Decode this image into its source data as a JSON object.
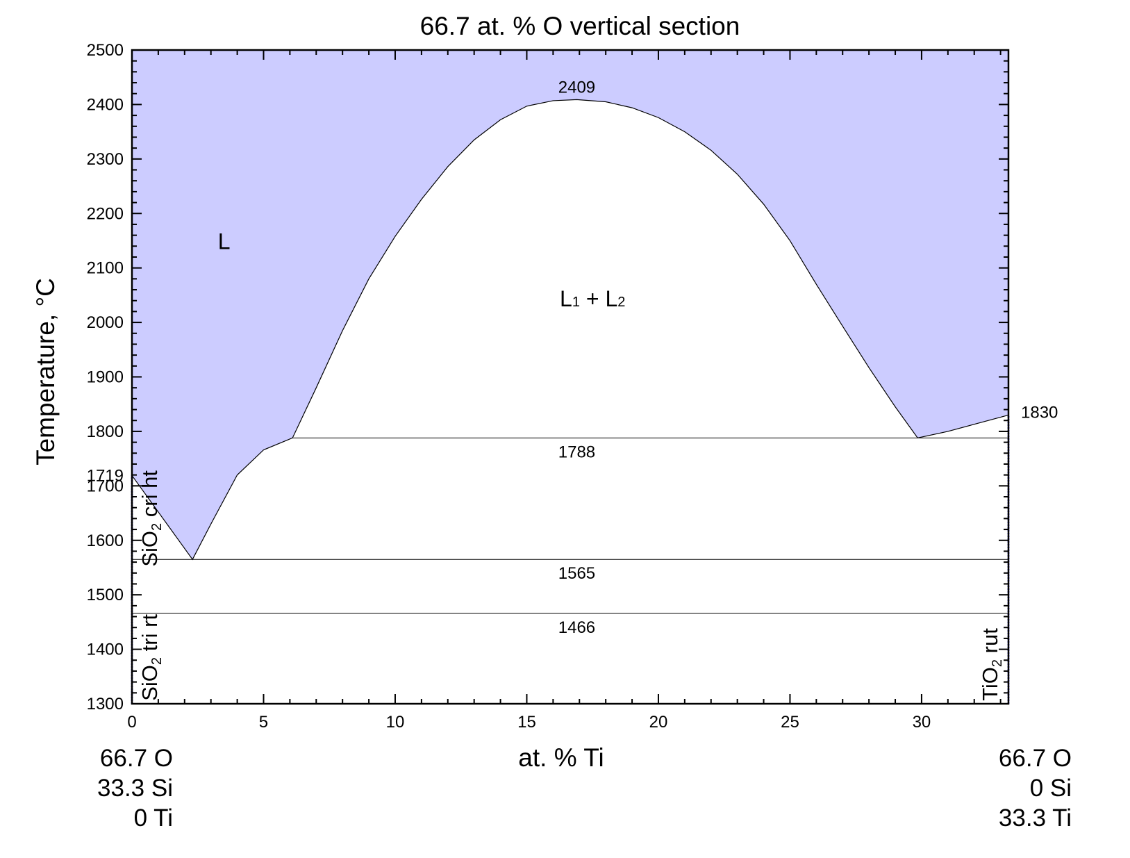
{
  "chart_data": {
    "type": "phase-diagram",
    "title": "66.7 at. % O vertical section",
    "xlabel": "at. % Ti",
    "ylabel": "Temperature, °C",
    "xlim": [
      0,
      33.3
    ],
    "ylim": [
      1300,
      2500
    ],
    "x_ticks": [
      0,
      5,
      10,
      15,
      20,
      25,
      30
    ],
    "y_ticks": [
      1300,
      1400,
      1500,
      1600,
      1700,
      1800,
      1900,
      2000,
      2100,
      2200,
      2300,
      2400,
      2500
    ],
    "y_tick_extra": [
      1719
    ],
    "grid": false,
    "fill_color": "#ccccff",
    "liquid_region": {
      "label": "L",
      "label_pos": [
        3.5,
        2150
      ],
      "boundary": [
        [
          0,
          1719
        ],
        [
          2.3,
          1565
        ],
        [
          3.0,
          1630
        ],
        [
          4.0,
          1720
        ],
        [
          5.0,
          1766
        ],
        [
          6.1,
          1788
        ],
        [
          7.0,
          1880
        ],
        [
          8.0,
          1985
        ],
        [
          9.0,
          2080
        ],
        [
          10.0,
          2158
        ],
        [
          11.0,
          2226
        ],
        [
          12.0,
          2286
        ],
        [
          13.0,
          2335
        ],
        [
          14.0,
          2372
        ],
        [
          15.0,
          2397
        ],
        [
          16.0,
          2407
        ],
        [
          16.9,
          2409
        ],
        [
          18.0,
          2405
        ],
        [
          19.0,
          2394
        ],
        [
          20.0,
          2376
        ],
        [
          21.0,
          2350
        ],
        [
          22.0,
          2316
        ],
        [
          23.0,
          2272
        ],
        [
          24.0,
          2217
        ],
        [
          25.0,
          2150
        ],
        [
          26.0,
          2070
        ],
        [
          27.0,
          1993
        ],
        [
          28.0,
          1917
        ],
        [
          29.0,
          1845
        ],
        [
          29.85,
          1788
        ],
        [
          31.0,
          1800
        ],
        [
          32.0,
          1813
        ],
        [
          33.3,
          1830
        ]
      ]
    },
    "miscibility_region": {
      "label": "L",
      "label_sub": "1",
      "label_join": " + ",
      "label2": "L",
      "label2_sub": "2",
      "label_pos": [
        17.5,
        2045
      ]
    },
    "invariant_lines": [
      {
        "T": 1788,
        "x_range": [
          6.1,
          33.3
        ],
        "label": "1788"
      },
      {
        "T": 1565,
        "x_range": [
          0,
          33.3
        ],
        "label": "1565"
      },
      {
        "T": 1466,
        "x_range": [
          0,
          33.3
        ],
        "label": "1466"
      }
    ],
    "annotations": [
      {
        "text": "2409",
        "x": 16.9,
        "T": 2409
      },
      {
        "text": "1830",
        "x": 33.3,
        "T": 1830
      }
    ],
    "edge_phases": [
      {
        "text": "SiO",
        "sub": "2",
        "rest": " cri ht",
        "side": "left",
        "T_range": [
          1565,
          1719
        ]
      },
      {
        "text": "SiO",
        "sub": "2",
        "rest": " tri rt",
        "side": "left",
        "T_range": [
          1300,
          1466
        ]
      },
      {
        "text": "TiO",
        "sub": "2",
        "rest": " rut",
        "side": "right",
        "T_range": [
          1300,
          1830
        ]
      }
    ],
    "compositions": {
      "left": [
        "66.7 O",
        "33.3 Si",
        "0 Ti"
      ],
      "right": [
        "66.7 O",
        "0 Si",
        "33.3 Ti"
      ]
    }
  }
}
